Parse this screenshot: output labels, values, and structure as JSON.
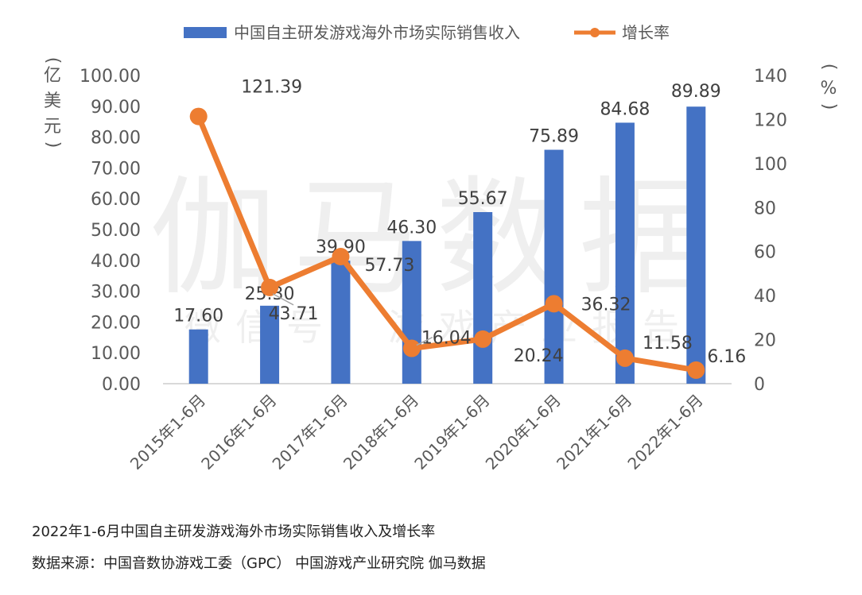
{
  "caption": {
    "title": "2022年1-6月中国自主研发游戏海外市场实际销售收入及增长率",
    "source": "数据来源：中国音数协游戏工委（GPC）  中国游戏产业研究院   伽马数据"
  },
  "watermark": {
    "main": "伽马数据",
    "sub": "微信号：游戏产业报告"
  },
  "colors": {
    "bar": "#4472C4",
    "line": "#ED7D31",
    "axis": "#D9D9D9",
    "text": "#595959"
  },
  "chart_data": {
    "type": "bar",
    "categories": [
      "2015年1-6月",
      "2016年1-6月",
      "2017年1-6月",
      "2018年1-6月",
      "2019年1-6月",
      "2020年1-6月",
      "2021年1-6月",
      "2022年1-6月"
    ],
    "series": [
      {
        "name": "中国自主研发游戏海外市场实际销售收入",
        "type": "bar",
        "axis": "left",
        "values": [
          17.6,
          25.3,
          39.9,
          46.3,
          55.67,
          75.89,
          84.68,
          89.89
        ],
        "labels": [
          "17.60",
          "25.30",
          "39.90",
          "46.30",
          "55.67",
          "75.89",
          "84.68",
          "89.89"
        ]
      },
      {
        "name": "增长率",
        "type": "line",
        "axis": "right",
        "values": [
          121.39,
          43.71,
          57.73,
          16.04,
          20.24,
          36.32,
          11.58,
          6.16
        ],
        "labels": [
          "121.39",
          "43.71",
          "57.73",
          "16.04",
          "20.24",
          "36.32",
          "11.58",
          "6.16"
        ]
      }
    ],
    "y_left": {
      "label": "亿美元",
      "lim": [
        0,
        100
      ],
      "ticks": [
        "0.00",
        "10.00",
        "20.00",
        "30.00",
        "40.00",
        "50.00",
        "60.00",
        "70.00",
        "80.00",
        "90.00",
        "100.00"
      ]
    },
    "y_right": {
      "label": "%",
      "lim": [
        0,
        140
      ],
      "ticks": [
        "0",
        "20",
        "40",
        "60",
        "80",
        "100",
        "120",
        "140"
      ]
    },
    "grid": false,
    "legend_position": "top"
  }
}
